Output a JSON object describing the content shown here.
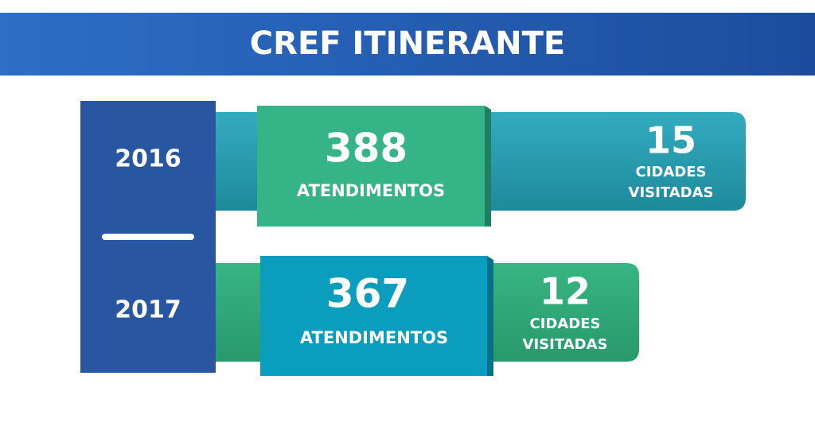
{
  "header": {
    "title": "CREF ITINERANTE"
  },
  "rows": [
    {
      "year": 2016,
      "attendances": 388,
      "attendances_label": "ATENDIMENTOS",
      "cities": 15,
      "cities_label": [
        "CIDADES",
        "VISITADAS"
      ]
    },
    {
      "year": 2017,
      "attendances": 367,
      "attendances_label": "ATENDIMENTOS",
      "cities": 12,
      "cities_label": [
        "CIDADES",
        "VISITADAS"
      ]
    }
  ]
}
